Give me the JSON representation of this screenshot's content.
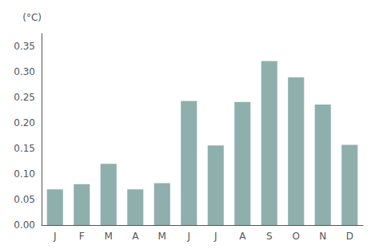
{
  "chart_data": {
    "type": "bar",
    "categories": [
      "J",
      "F",
      "M",
      "A",
      "M",
      "J",
      "J",
      "A",
      "S",
      "O",
      "N",
      "D"
    ],
    "values": [
      0.07,
      0.08,
      0.12,
      0.07,
      0.082,
      0.243,
      0.156,
      0.241,
      0.321,
      0.289,
      0.236,
      0.157
    ],
    "color": "#8fafac",
    "ylabel": "(°C)",
    "ylim": [
      0.0,
      0.375
    ],
    "yticks": [
      {
        "value": 0.0,
        "label": "0.00"
      },
      {
        "value": 0.05,
        "label": "0.05"
      },
      {
        "value": 0.1,
        "label": "0.10"
      },
      {
        "value": 0.15,
        "label": "0.15"
      },
      {
        "value": 0.2,
        "label": "0.20"
      },
      {
        "value": 0.25,
        "label": "0.25"
      },
      {
        "value": 0.3,
        "label": "0.30"
      },
      {
        "value": 0.35,
        "label": "0.35"
      }
    ],
    "grid": false
  }
}
